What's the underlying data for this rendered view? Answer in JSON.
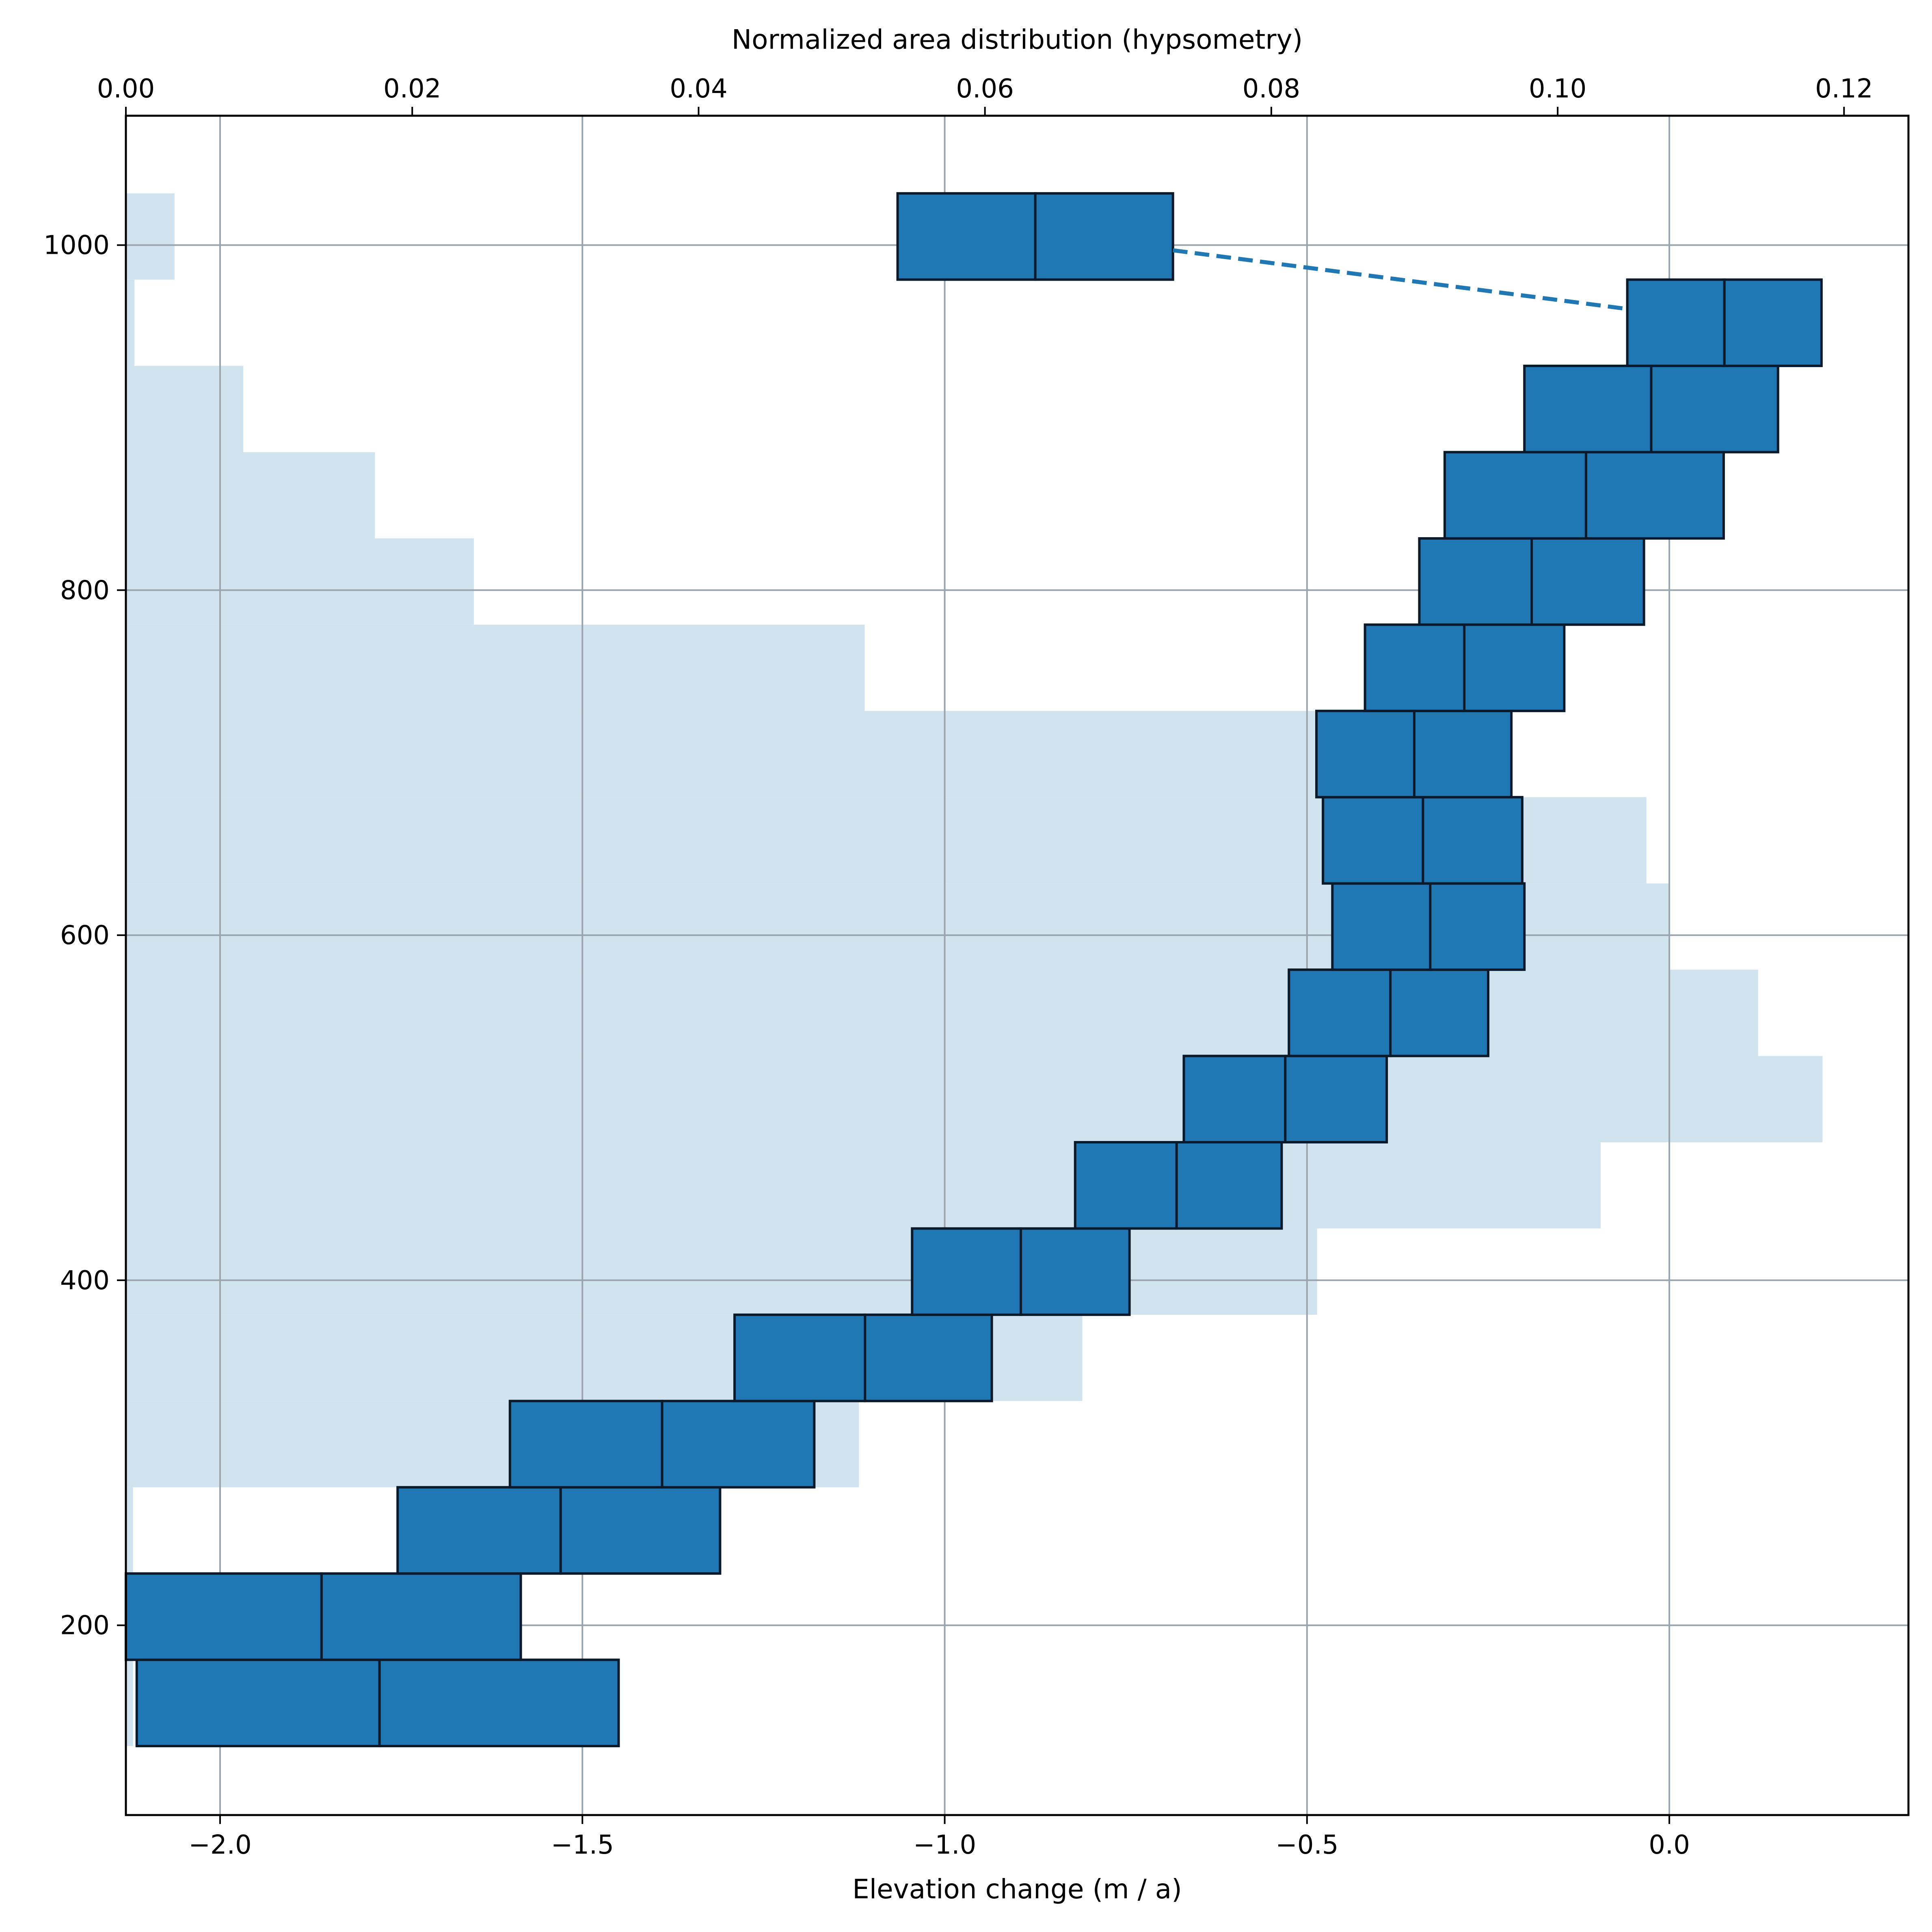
{
  "chart_data": {
    "type": "bar",
    "xlabel": "Elevation change (m / a)",
    "x2label": "Normalized area distribution (hypsometry)",
    "xlim": [
      -2.13,
      0.33
    ],
    "x2lim": [
      0.0,
      0.1245
    ],
    "ylim": [
      90,
      1075
    ],
    "grid": true,
    "x_ticks": [
      "−2.0",
      "−1.5",
      "−1.0",
      "−0.5",
      "0.0"
    ],
    "x_tick_values": [
      -2.0,
      -1.5,
      -1.0,
      -0.5,
      0.0
    ],
    "x2_ticks": [
      "0.00",
      "0.02",
      "0.04",
      "0.06",
      "0.08",
      "0.10",
      "0.12"
    ],
    "x2_tick_values": [
      0.0,
      0.02,
      0.04,
      0.06,
      0.08,
      0.1,
      0.12
    ],
    "y_ticks": [
      "200",
      "400",
      "600",
      "800",
      "1000"
    ],
    "y_tick_values": [
      200,
      400,
      600,
      800,
      1000
    ],
    "hypsometry_color": "#d1e3ef",
    "box_color": "#1f77b4",
    "edge_color": "#0a1a2a",
    "hypsometry": [
      {
        "y_low": 130,
        "y_high": 180,
        "value": 0.0005
      },
      {
        "y_low": 180,
        "y_high": 230,
        "value": 0.0005
      },
      {
        "y_low": 230,
        "y_high": 280,
        "value": 0.0005
      },
      {
        "y_low": 280,
        "y_high": 330,
        "value": 0.0512
      },
      {
        "y_low": 330,
        "y_high": 380,
        "value": 0.0668
      },
      {
        "y_low": 380,
        "y_high": 430,
        "value": 0.0832
      },
      {
        "y_low": 430,
        "y_high": 480,
        "value": 0.103
      },
      {
        "y_low": 480,
        "y_high": 530,
        "value": 0.1185
      },
      {
        "y_low": 530,
        "y_high": 580,
        "value": 0.114
      },
      {
        "y_low": 580,
        "y_high": 630,
        "value": 0.1078
      },
      {
        "y_low": 630,
        "y_high": 680,
        "value": 0.1062
      },
      {
        "y_low": 680,
        "y_high": 730,
        "value": 0.0832
      },
      {
        "y_low": 730,
        "y_high": 780,
        "value": 0.0516
      },
      {
        "y_low": 780,
        "y_high": 830,
        "value": 0.0243
      },
      {
        "y_low": 830,
        "y_high": 880,
        "value": 0.0174
      },
      {
        "y_low": 880,
        "y_high": 930,
        "value": 0.0082
      },
      {
        "y_low": 930,
        "y_high": 980,
        "value": 0.0006
      },
      {
        "y_low": 980,
        "y_high": 1030,
        "value": 0.0034
      }
    ],
    "boxes": [
      {
        "y_low": 130,
        "y_high": 180,
        "x_low": -2.115,
        "x_high": -1.45,
        "x_mid": -1.78
      },
      {
        "y_low": 180,
        "y_high": 230,
        "x_low": -2.13,
        "x_high": -1.585,
        "x_mid": -1.86
      },
      {
        "y_low": 230,
        "y_high": 280,
        "x_low": -1.755,
        "x_high": -1.31,
        "x_mid": -1.53
      },
      {
        "y_low": 280,
        "y_high": 330,
        "x_low": -1.6,
        "x_high": -1.18,
        "x_mid": -1.39
      },
      {
        "y_low": 330,
        "y_high": 380,
        "x_low": -1.29,
        "x_high": -0.935,
        "x_mid": -1.11
      },
      {
        "y_low": 380,
        "y_high": 430,
        "x_low": -1.045,
        "x_high": -0.745,
        "x_mid": -0.895
      },
      {
        "y_low": 430,
        "y_high": 480,
        "x_low": -0.82,
        "x_high": -0.535,
        "x_mid": -0.68
      },
      {
        "y_low": 480,
        "y_high": 530,
        "x_low": -0.67,
        "x_high": -0.39,
        "x_mid": -0.53
      },
      {
        "y_low": 530,
        "y_high": 580,
        "x_low": -0.525,
        "x_high": -0.25,
        "x_mid": -0.385
      },
      {
        "y_low": 580,
        "y_high": 630,
        "x_low": -0.465,
        "x_high": -0.2,
        "x_mid": -0.33
      },
      {
        "y_low": 630,
        "y_high": 680,
        "x_low": -0.478,
        "x_high": -0.203,
        "x_mid": -0.34
      },
      {
        "y_low": 680,
        "y_high": 730,
        "x_low": -0.487,
        "x_high": -0.218,
        "x_mid": -0.352
      },
      {
        "y_low": 730,
        "y_high": 780,
        "x_low": -0.42,
        "x_high": -0.145,
        "x_mid": -0.283
      },
      {
        "y_low": 780,
        "y_high": 830,
        "x_low": -0.345,
        "x_high": -0.035,
        "x_mid": -0.19
      },
      {
        "y_low": 830,
        "y_high": 880,
        "x_low": -0.31,
        "x_high": 0.075,
        "x_mid": -0.115
      },
      {
        "y_low": 880,
        "y_high": 930,
        "x_low": -0.2,
        "x_high": 0.15,
        "x_mid": -0.025
      },
      {
        "y_low": 930,
        "y_high": 980,
        "x_low": -0.058,
        "x_high": 0.21,
        "x_mid": 0.076
      },
      {
        "y_low": 980,
        "y_high": 1030,
        "x_low": -1.065,
        "x_high": -0.685,
        "x_mid": -0.875
      }
    ],
    "dashed_connector": {
      "x1": -0.685,
      "y1": 997,
      "x2": -0.058,
      "y2": 963
    }
  }
}
